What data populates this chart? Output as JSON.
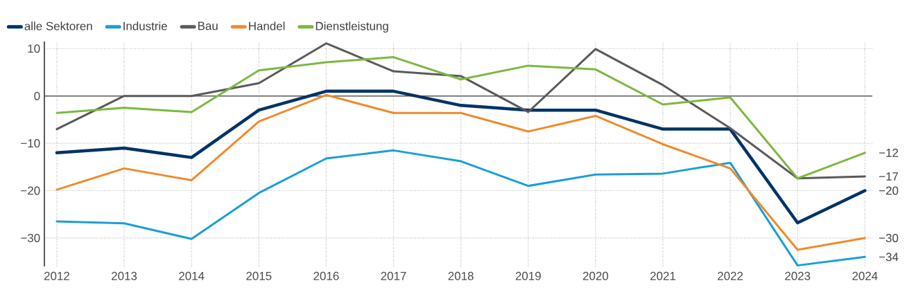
{
  "chart_data": {
    "type": "line",
    "categories": [
      "2012",
      "2013",
      "2014",
      "2015",
      "2016",
      "2017",
      "2018",
      "2019",
      "2020",
      "2021",
      "2022",
      "2023",
      "2024"
    ],
    "series": [
      {
        "name": "alle Sektoren",
        "color": "#003366",
        "values": [
          -12,
          -11,
          -13,
          -3,
          1,
          1,
          -2,
          -3,
          -3,
          -7,
          -7,
          -26.8,
          -20
        ],
        "value_labels": [
          null,
          null,
          null,
          null,
          null,
          null,
          null,
          null,
          null,
          null,
          null,
          null,
          "−20"
        ]
      },
      {
        "name": "Industrie",
        "color": "#1a9fd6",
        "values": [
          -26.5,
          -26.9,
          -30.2,
          -20.5,
          -13.2,
          -11.5,
          -13.8,
          -19,
          -16.6,
          -16.4,
          -14.1,
          -35.8,
          -34
        ],
        "value_labels": [
          null,
          null,
          null,
          null,
          null,
          null,
          null,
          null,
          null,
          null,
          null,
          null,
          "−34"
        ]
      },
      {
        "name": "Bau",
        "color": "#5a5a5a",
        "values": [
          -7,
          0,
          0,
          2.7,
          11.1,
          5.2,
          4.2,
          -3.4,
          9.9,
          2.3,
          -6.8,
          -17.4,
          -17
        ],
        "value_labels": [
          null,
          null,
          null,
          null,
          null,
          null,
          null,
          null,
          null,
          null,
          null,
          null,
          "−17"
        ]
      },
      {
        "name": "Handel",
        "color": "#f08a2c",
        "values": [
          -19.8,
          -15.3,
          -17.8,
          -5.4,
          0.2,
          -3.6,
          -3.6,
          -7.5,
          -4.2,
          -10.2,
          -15.3,
          -32.5,
          -30
        ],
        "value_labels": [
          null,
          null,
          null,
          null,
          null,
          null,
          null,
          null,
          null,
          null,
          null,
          null,
          "−30"
        ]
      },
      {
        "name": "Dienstleistung",
        "color": "#7ab940",
        "values": [
          -3.6,
          -2.5,
          -3.4,
          5.4,
          7.1,
          8.2,
          3.5,
          6.4,
          5.6,
          -1.8,
          -0.3,
          -17.4,
          -12
        ],
        "value_labels": [
          null,
          null,
          null,
          null,
          null,
          null,
          null,
          null,
          null,
          null,
          null,
          null,
          "−12"
        ]
      }
    ],
    "ylim": [
      -36,
      11.5
    ],
    "yticks": [
      {
        "value": -30,
        "label": "−30"
      },
      {
        "value": -20,
        "label": "−20"
      },
      {
        "value": -10,
        "label": "−10"
      },
      0,
      10
    ],
    "ref_lines": [
      {
        "axis": "y",
        "value": 0,
        "color": "#5a5a5a"
      }
    ],
    "grid": true,
    "legend": "top left",
    "marker": "none",
    "line_style": "solid"
  }
}
